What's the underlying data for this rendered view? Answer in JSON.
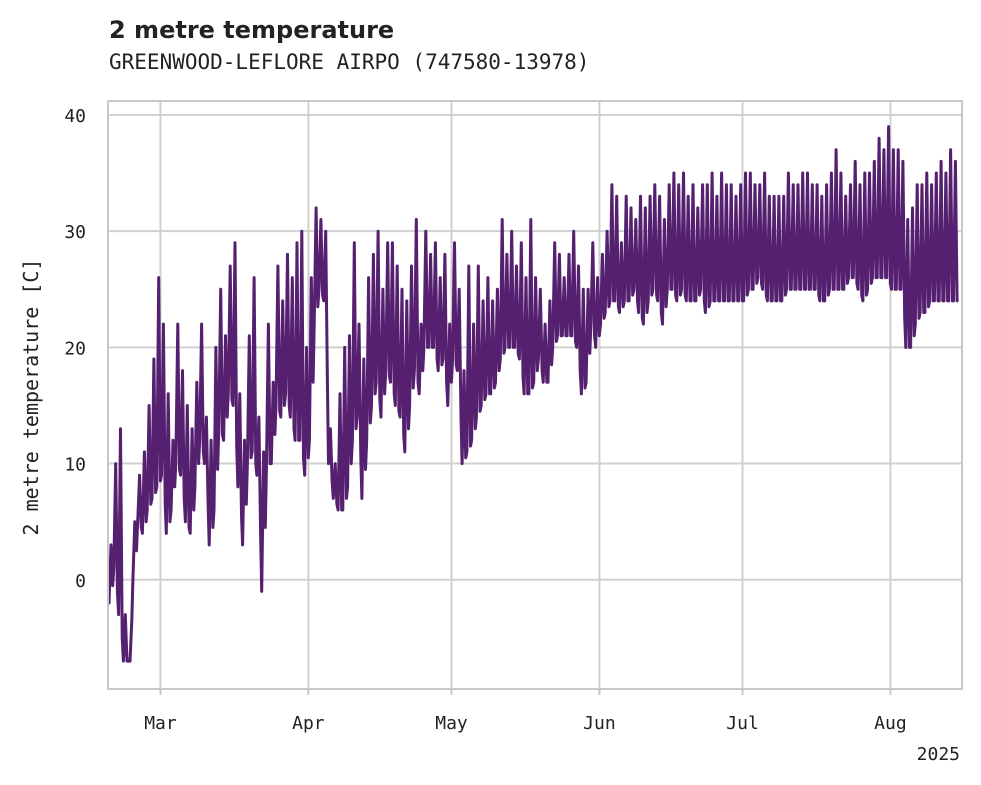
{
  "chart_data": {
    "type": "line",
    "title": "2 metre temperature",
    "subtitle": "GREENWOOD-LEFLORE AIRPO (747580-13978)",
    "ylabel": "2 metre temperature [C]",
    "xlabel": "",
    "year_label": "2025",
    "ylim": [
      -9.4,
      41.2
    ],
    "xlim": [
      "2025-02-18",
      "2025-08-16"
    ],
    "yticks": [
      0,
      10,
      20,
      30,
      40
    ],
    "xticks": [
      {
        "date": "2025-03-01",
        "label": "Mar"
      },
      {
        "date": "2025-04-01",
        "label": "Apr"
      },
      {
        "date": "2025-05-01",
        "label": "May"
      },
      {
        "date": "2025-06-01",
        "label": "Jun"
      },
      {
        "date": "2025-07-01",
        "label": "Jul"
      },
      {
        "date": "2025-08-01",
        "label": "Aug"
      }
    ],
    "grid": true,
    "line_color": "#54206f",
    "series": [
      {
        "x": [
          "2025-02-18",
          "2025-02-19",
          "2025-02-20",
          "2025-02-21",
          "2025-02-22",
          "2025-02-23",
          "2025-02-24",
          "2025-02-25",
          "2025-02-26",
          "2025-02-27",
          "2025-02-28",
          "2025-03-01",
          "2025-03-02",
          "2025-03-03",
          "2025-03-04",
          "2025-03-05",
          "2025-03-06",
          "2025-03-07",
          "2025-03-08",
          "2025-03-09",
          "2025-03-10",
          "2025-03-11",
          "2025-03-12",
          "2025-03-13",
          "2025-03-14",
          "2025-03-15",
          "2025-03-16",
          "2025-03-17",
          "2025-03-18",
          "2025-03-19",
          "2025-03-20",
          "2025-03-21",
          "2025-03-22",
          "2025-03-23",
          "2025-03-24",
          "2025-03-25",
          "2025-03-26",
          "2025-03-27",
          "2025-03-28",
          "2025-03-29",
          "2025-03-30",
          "2025-03-31",
          "2025-04-01",
          "2025-04-02",
          "2025-04-03",
          "2025-04-04",
          "2025-04-05",
          "2025-04-06",
          "2025-04-07",
          "2025-04-08",
          "2025-04-09",
          "2025-04-10",
          "2025-04-11",
          "2025-04-12",
          "2025-04-13",
          "2025-04-14",
          "2025-04-15",
          "2025-04-16",
          "2025-04-17",
          "2025-04-18",
          "2025-04-19",
          "2025-04-20",
          "2025-04-21",
          "2025-04-22",
          "2025-04-23",
          "2025-04-24",
          "2025-04-25",
          "2025-04-26",
          "2025-04-27",
          "2025-04-28",
          "2025-04-29",
          "2025-04-30",
          "2025-05-01",
          "2025-05-02",
          "2025-05-03",
          "2025-05-04",
          "2025-05-05",
          "2025-05-06",
          "2025-05-07",
          "2025-05-08",
          "2025-05-09",
          "2025-05-10",
          "2025-05-11",
          "2025-05-12",
          "2025-05-13",
          "2025-05-14",
          "2025-05-15",
          "2025-05-16",
          "2025-05-17",
          "2025-05-18",
          "2025-05-19",
          "2025-05-20",
          "2025-05-21",
          "2025-05-22",
          "2025-05-23",
          "2025-05-24",
          "2025-05-25",
          "2025-05-26",
          "2025-05-27",
          "2025-05-28",
          "2025-05-29",
          "2025-05-30",
          "2025-05-31",
          "2025-06-01",
          "2025-06-02",
          "2025-06-03",
          "2025-06-04",
          "2025-06-05",
          "2025-06-06",
          "2025-06-07",
          "2025-06-08",
          "2025-06-09",
          "2025-06-10",
          "2025-06-11",
          "2025-06-12",
          "2025-06-13",
          "2025-06-14",
          "2025-06-15",
          "2025-06-16",
          "2025-06-17",
          "2025-06-18",
          "2025-06-19",
          "2025-06-20",
          "2025-06-21",
          "2025-06-22",
          "2025-06-23",
          "2025-06-24",
          "2025-06-25",
          "2025-06-26",
          "2025-06-27",
          "2025-06-28",
          "2025-06-29",
          "2025-06-30",
          "2025-07-01",
          "2025-07-02",
          "2025-07-03",
          "2025-07-04",
          "2025-07-05",
          "2025-07-06",
          "2025-07-07",
          "2025-07-08",
          "2025-07-09",
          "2025-07-10",
          "2025-07-11",
          "2025-07-12",
          "2025-07-13",
          "2025-07-14",
          "2025-07-15",
          "2025-07-16",
          "2025-07-17",
          "2025-07-18",
          "2025-07-19",
          "2025-07-20",
          "2025-07-21",
          "2025-07-22",
          "2025-07-23",
          "2025-07-24",
          "2025-07-25",
          "2025-07-26",
          "2025-07-27",
          "2025-07-28",
          "2025-07-29",
          "2025-07-30",
          "2025-07-31",
          "2025-08-01",
          "2025-08-02",
          "2025-08-03",
          "2025-08-04",
          "2025-08-05",
          "2025-08-06",
          "2025-08-07",
          "2025-08-08",
          "2025-08-09",
          "2025-08-10",
          "2025-08-11",
          "2025-08-12",
          "2025-08-13",
          "2025-08-14",
          "2025-08-15",
          "2025-08-16"
        ],
        "max": [
          3,
          10,
          13,
          -3,
          -7,
          5,
          9,
          11,
          15,
          19,
          26,
          22,
          16,
          12,
          22,
          18,
          15,
          13,
          17,
          22,
          14,
          12,
          20,
          25,
          21,
          27,
          29,
          16,
          12,
          21,
          26,
          14,
          11,
          22,
          17,
          27,
          24,
          28,
          26,
          29,
          30,
          20,
          26,
          32,
          31,
          30,
          13,
          10,
          16,
          20,
          21,
          29,
          22,
          19,
          26,
          28,
          30,
          25,
          29,
          29,
          27,
          25,
          24,
          27,
          31,
          22,
          30,
          28,
          29,
          26,
          28,
          22,
          29,
          25,
          18,
          27,
          22,
          27,
          24,
          26,
          24,
          25,
          31,
          28,
          30,
          27,
          29,
          26,
          31,
          26,
          25,
          22,
          24,
          29,
          28,
          26,
          28,
          30,
          27,
          25,
          25,
          29,
          26,
          28,
          30,
          34,
          33,
          29,
          33,
          32,
          31,
          33,
          32,
          33,
          34,
          33,
          31,
          34,
          35,
          34,
          35,
          33,
          34,
          32,
          34,
          34,
          35,
          33,
          35,
          34,
          34,
          33,
          34,
          35,
          35,
          34,
          34,
          35,
          33,
          33,
          33,
          33,
          35,
          34,
          34,
          35,
          35,
          34,
          34,
          33,
          34,
          35,
          37,
          35,
          33,
          34,
          36,
          34,
          35,
          35,
          36,
          38,
          37,
          39,
          37,
          37,
          36,
          31,
          32,
          34,
          34,
          35,
          34,
          35,
          36,
          35,
          37,
          36
        ],
        "min": [
          -2,
          1,
          -3,
          -7,
          -7,
          0,
          5,
          4,
          6,
          7,
          8,
          9,
          4,
          6,
          10,
          9,
          5,
          4,
          8,
          12,
          10,
          3,
          6,
          13,
          12,
          16,
          15,
          8,
          3,
          10,
          11,
          9,
          -1,
          10,
          10,
          15,
          14,
          16,
          14,
          12,
          12,
          9,
          12,
          22,
          25,
          24,
          10,
          7,
          6,
          6,
          8,
          12,
          14,
          7,
          12,
          15,
          17,
          14,
          18,
          17,
          15,
          14,
          11,
          15,
          18,
          16,
          20,
          20,
          20,
          18,
          19,
          15,
          19,
          18,
          10,
          11,
          12,
          14,
          15,
          16,
          16,
          17,
          19,
          20,
          20,
          20,
          19,
          16,
          16,
          17,
          19,
          17,
          17,
          20,
          21,
          21,
          21,
          21,
          20,
          16,
          17,
          22,
          20,
          22,
          23,
          24,
          24,
          23,
          24,
          24,
          25,
          23,
          22,
          24,
          25,
          24,
          22,
          25,
          25,
          24,
          25,
          24,
          24,
          24,
          25,
          23,
          24,
          24,
          24,
          24,
          24,
          24,
          24,
          24,
          25,
          25,
          26,
          25,
          24,
          24,
          24,
          24,
          25,
          25,
          25,
          25,
          25,
          25,
          25,
          24,
          24,
          25,
          25,
          25,
          25,
          26,
          26,
          25,
          24,
          25,
          26,
          26,
          26,
          26,
          25,
          25,
          25,
          20,
          20,
          22,
          23,
          23,
          24,
          24,
          24,
          24,
          24,
          24
        ]
      }
    ]
  }
}
